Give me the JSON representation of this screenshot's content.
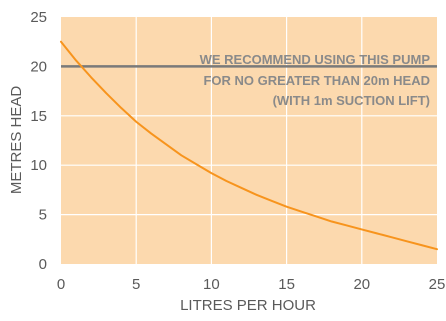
{
  "chart_data": {
    "type": "line",
    "title": "",
    "xlabel": "LITRES PER HOUR",
    "ylabel": "METRES HEAD",
    "xlim": [
      0,
      25
    ],
    "ylim": [
      0,
      25
    ],
    "x_ticks": [
      "0",
      "5",
      "10",
      "15",
      "20",
      "25"
    ],
    "y_ticks": [
      "0",
      "5",
      "10",
      "15",
      "20",
      "25"
    ],
    "grid": true,
    "series": [
      {
        "color": "#f7941d",
        "x": [
          0,
          1,
          2,
          3,
          4,
          5,
          6,
          7,
          8,
          9,
          10,
          11,
          12,
          13,
          14,
          15,
          16,
          17,
          18,
          19,
          20,
          21,
          22,
          23,
          24,
          25
        ],
        "y": [
          22.5,
          20.6,
          18.9,
          17.3,
          15.8,
          14.4,
          13.2,
          12.1,
          11.0,
          10.1,
          9.2,
          8.4,
          7.7,
          7.0,
          6.4,
          5.8,
          5.3,
          4.8,
          4.3,
          3.9,
          3.5,
          3.1,
          2.7,
          2.3,
          1.9,
          1.5
        ]
      }
    ],
    "reference_line": {
      "y": 20,
      "color": "#7a7a7a"
    },
    "annotation": [
      "WE RECOMMEND USING THIS PUMP",
      "FOR NO GREATER THAN 20m HEAD",
      "(WITH 1m SUCTION LIFT)"
    ],
    "background_color": "#fcd9ae",
    "grid_color": "#ffffff"
  }
}
